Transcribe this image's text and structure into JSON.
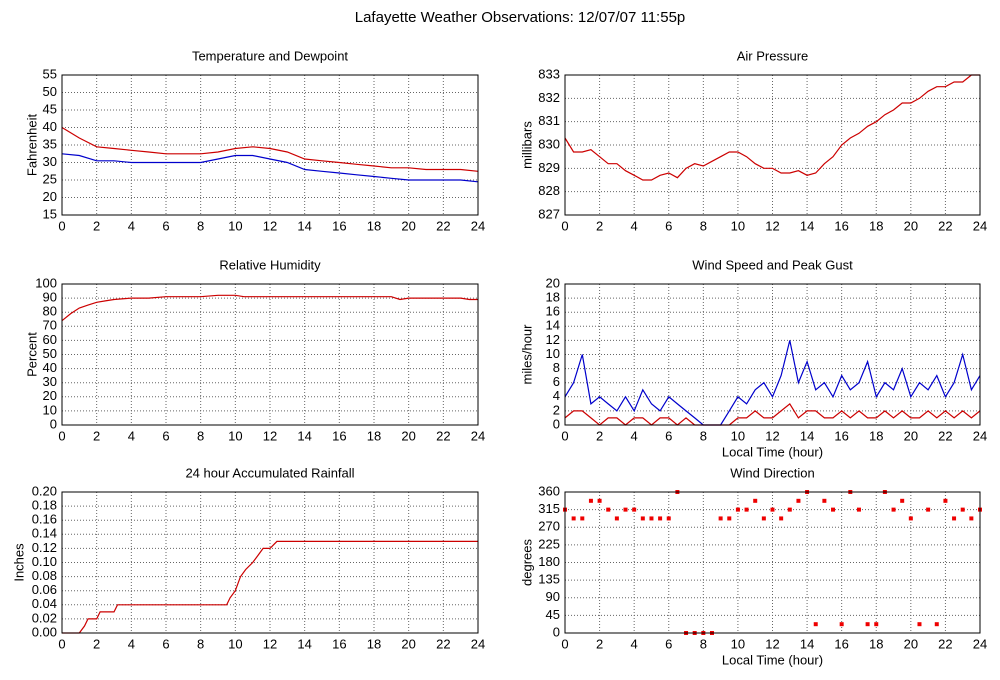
{
  "title": "Lafayette Weather Observations: 12/07/07 11:55p",
  "chart_data": [
    {
      "type": "line",
      "title": "Temperature and Dewpoint",
      "y_label": "Fahrenheit",
      "x": [
        0,
        1,
        2,
        3,
        4,
        5,
        6,
        7,
        8,
        9,
        10,
        11,
        12,
        13,
        14,
        15,
        16,
        17,
        18,
        19,
        20,
        21,
        22,
        23,
        24
      ],
      "series": [
        {
          "color": "#cc0000",
          "values": [
            40,
            37,
            34.5,
            34,
            33.5,
            33,
            32.5,
            32.5,
            32.5,
            33,
            34,
            34.5,
            34,
            33,
            31,
            30.5,
            30,
            29.5,
            29,
            28.5,
            28.5,
            28,
            28,
            28,
            27.5
          ]
        },
        {
          "color": "#0000cc",
          "values": [
            32.5,
            32,
            30.5,
            30.5,
            30,
            30,
            30,
            30,
            30,
            31,
            32,
            32,
            31,
            30,
            28,
            27.5,
            27,
            26.5,
            26,
            25.5,
            25,
            25,
            25,
            25,
            24.5
          ]
        }
      ],
      "xlim": [
        0,
        24
      ],
      "xticks": [
        0,
        2,
        4,
        6,
        8,
        10,
        12,
        14,
        16,
        18,
        20,
        22,
        24
      ],
      "ylim": [
        15,
        55
      ],
      "yticks": [
        15,
        20,
        25,
        30,
        35,
        40,
        45,
        50,
        55
      ],
      "grid": true
    },
    {
      "type": "line",
      "title": "Air Pressure",
      "y_label": "millibars",
      "x": [
        0,
        0.5,
        1,
        1.5,
        2,
        2.5,
        3,
        3.5,
        4,
        4.5,
        5,
        5.5,
        6,
        6.5,
        7,
        7.5,
        8,
        8.5,
        9,
        9.5,
        10,
        10.5,
        11,
        11.5,
        12,
        12.5,
        13,
        13.5,
        14,
        14.5,
        15,
        15.5,
        16,
        16.5,
        17,
        17.5,
        18,
        18.5,
        19,
        19.5,
        20,
        20.5,
        21,
        21.5,
        22,
        22.5,
        23,
        23.5,
        24
      ],
      "series": [
        {
          "color": "#cc0000",
          "values": [
            830.3,
            829.7,
            829.7,
            829.8,
            829.5,
            829.2,
            829.2,
            828.9,
            828.7,
            828.5,
            828.5,
            828.7,
            828.8,
            828.6,
            829.0,
            829.2,
            829.1,
            829.3,
            829.5,
            829.7,
            829.7,
            829.5,
            829.2,
            829.0,
            829.0,
            828.8,
            828.8,
            828.9,
            828.7,
            828.8,
            829.2,
            829.5,
            830.0,
            830.3,
            830.5,
            830.8,
            831.0,
            831.3,
            831.5,
            831.8,
            831.8,
            832.0,
            832.3,
            832.5,
            832.5,
            832.7,
            832.7,
            833,
            833
          ]
        }
      ],
      "xlim": [
        0,
        24
      ],
      "xticks": [
        0,
        2,
        4,
        6,
        8,
        10,
        12,
        14,
        16,
        18,
        20,
        22,
        24
      ],
      "ylim": [
        827,
        833
      ],
      "yticks": [
        827,
        828,
        829,
        830,
        831,
        832,
        833
      ],
      "grid": true
    },
    {
      "type": "line",
      "title": "Relative Humidity",
      "y_label": "Percent",
      "x": [
        0,
        0.5,
        1,
        1.5,
        2,
        2.5,
        3,
        4,
        5,
        6,
        7,
        8,
        9,
        10,
        10.5,
        11,
        12,
        13,
        14,
        15,
        16,
        17,
        18,
        19,
        19.5,
        20,
        21,
        22,
        23,
        23.5,
        24
      ],
      "series": [
        {
          "color": "#cc0000",
          "values": [
            74,
            79,
            83,
            85,
            87,
            88,
            89,
            90,
            90,
            91,
            91,
            91,
            92,
            92,
            91,
            91,
            91,
            91,
            91,
            91,
            91,
            91,
            91,
            91,
            89,
            90,
            90,
            90,
            90,
            89,
            89
          ]
        }
      ],
      "xlim": [
        0,
        24
      ],
      "xticks": [
        0,
        2,
        4,
        6,
        8,
        10,
        12,
        14,
        16,
        18,
        20,
        22,
        24
      ],
      "ylim": [
        0,
        100
      ],
      "yticks": [
        0,
        10,
        20,
        30,
        40,
        50,
        60,
        70,
        80,
        90,
        100
      ],
      "grid": true
    },
    {
      "type": "line",
      "title": "Wind Speed and Peak Gust",
      "y_label": "miles/hour",
      "x_label": "Local Time (hour)",
      "x": [
        0,
        0.5,
        1,
        1.5,
        2,
        2.5,
        3,
        3.5,
        4,
        4.5,
        5,
        5.5,
        6,
        6.5,
        7,
        7.5,
        8,
        8.5,
        9,
        9.5,
        10,
        10.5,
        11,
        11.5,
        12,
        12.5,
        13,
        13.5,
        14,
        14.5,
        15,
        15.5,
        16,
        16.5,
        17,
        17.5,
        18,
        18.5,
        19,
        19.5,
        20,
        20.5,
        21,
        21.5,
        22,
        22.5,
        23,
        23.5,
        24
      ],
      "series": [
        {
          "color": "#0000cc",
          "values": [
            4,
            6,
            10,
            3,
            4,
            3,
            2,
            4,
            2,
            5,
            3,
            2,
            4,
            3,
            2,
            1,
            0,
            0,
            0,
            2,
            4,
            3,
            5,
            6,
            4,
            7,
            12,
            6,
            9,
            5,
            6,
            4,
            7,
            5,
            6,
            9,
            4,
            6,
            5,
            8,
            4,
            6,
            5,
            7,
            4,
            6,
            10,
            5,
            7
          ]
        },
        {
          "color": "#cc0000",
          "values": [
            1,
            2,
            2,
            1,
            0,
            1,
            1,
            0,
            1,
            1,
            0,
            1,
            1,
            0,
            1,
            0,
            0,
            0,
            0,
            0,
            1,
            1,
            2,
            1,
            1,
            2,
            3,
            1,
            2,
            2,
            1,
            1,
            2,
            1,
            2,
            1,
            1,
            2,
            1,
            2,
            1,
            1,
            2,
            1,
            2,
            1,
            2,
            1,
            2
          ]
        }
      ],
      "xlim": [
        0,
        24
      ],
      "xticks": [
        0,
        2,
        4,
        6,
        8,
        10,
        12,
        14,
        16,
        18,
        20,
        22,
        24
      ],
      "ylim": [
        0,
        20
      ],
      "yticks": [
        0,
        2,
        4,
        6,
        8,
        10,
        12,
        14,
        16,
        18,
        20
      ],
      "grid": true
    },
    {
      "type": "line",
      "title": "24 hour Accumulated Rainfall",
      "y_label": "Inches",
      "x": [
        0,
        1,
        1.3,
        1.5,
        2,
        2.2,
        3,
        3.2,
        9.5,
        9.7,
        10,
        10.3,
        10.6,
        11,
        11.3,
        11.6,
        12,
        12.4,
        24
      ],
      "series": [
        {
          "color": "#cc0000",
          "values": [
            0,
            0,
            0.01,
            0.02,
            0.02,
            0.03,
            0.03,
            0.04,
            0.04,
            0.05,
            0.06,
            0.08,
            0.09,
            0.1,
            0.11,
            0.12,
            0.12,
            0.13,
            0.13
          ]
        }
      ],
      "xlim": [
        0,
        24
      ],
      "xticks": [
        0,
        2,
        4,
        6,
        8,
        10,
        12,
        14,
        16,
        18,
        20,
        22,
        24
      ],
      "ylim": [
        0,
        0.2
      ],
      "yticks": [
        {
          "value": 0,
          "label": "0.00"
        },
        {
          "value": 0.02,
          "label": "0.02"
        },
        {
          "value": 0.04,
          "label": "0.04"
        },
        {
          "value": 0.06,
          "label": "0.06"
        },
        {
          "value": 0.08,
          "label": "0.08"
        },
        {
          "value": 0.1,
          "label": "0.10"
        },
        {
          "value": 0.12,
          "label": "0.12"
        },
        {
          "value": 0.14,
          "label": "0.14"
        },
        {
          "value": 0.16,
          "label": "0.16"
        },
        {
          "value": 0.18,
          "label": "0.18"
        },
        {
          "value": 0.2,
          "label": "0.20"
        }
      ],
      "grid": true
    },
    {
      "type": "scatter",
      "title": "Wind Direction",
      "y_label": "degrees",
      "x_label": "Local Time (hour)",
      "x": [
        0,
        0.5,
        1,
        1.5,
        2,
        2.5,
        3,
        3.5,
        4,
        4.5,
        5,
        5.5,
        6,
        6.5,
        7,
        7.5,
        8,
        8.5,
        9,
        9.5,
        10,
        10.5,
        11,
        11.5,
        12,
        12.5,
        13,
        13.5,
        14,
        14.5,
        15,
        15.5,
        16,
        16.5,
        17,
        17.5,
        18,
        18.5,
        19,
        19.5,
        20,
        20.5,
        21,
        21.5,
        22,
        22.5,
        23,
        23.5,
        24
      ],
      "series": [
        {
          "color": "#ee0000",
          "values": [
            315,
            292.5,
            292.5,
            337.5,
            337.5,
            315,
            292.5,
            315,
            315,
            292.5,
            292.5,
            292.5,
            292.5,
            360,
            0,
            0,
            0,
            0,
            292.5,
            292.5,
            315,
            315,
            337.5,
            292.5,
            315,
            292.5,
            315,
            337.5,
            360,
            22.5,
            337.5,
            315,
            22.5,
            360,
            315,
            22.5,
            22.5,
            360,
            315,
            337.5,
            292.5,
            22.5,
            315,
            22.5,
            337.5,
            292.5,
            315,
            292.5,
            315
          ]
        }
      ],
      "xlim": [
        0,
        24
      ],
      "xticks": [
        0,
        2,
        4,
        6,
        8,
        10,
        12,
        14,
        16,
        18,
        20,
        22,
        24
      ],
      "ylim": [
        0,
        360
      ],
      "yticks": [
        0,
        45,
        90,
        135,
        180,
        225,
        270,
        315,
        360
      ],
      "grid": true
    }
  ]
}
